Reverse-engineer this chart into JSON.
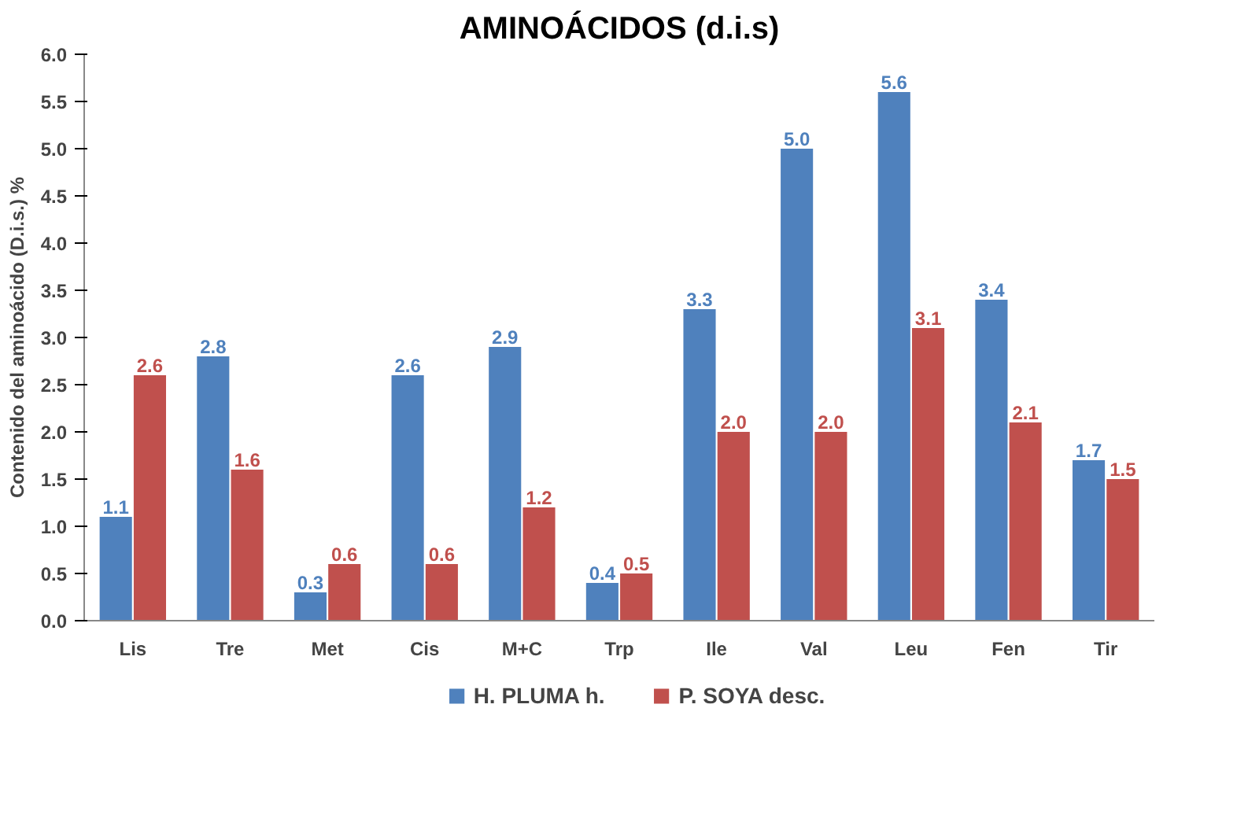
{
  "chart_data": {
    "type": "bar",
    "title": "AMINOÁCIDOS (d.i.s)",
    "ylabel": "Contenido del aminoácido (D.i.s.) %",
    "categories": [
      "Lis",
      "Tre",
      "Met",
      "Cis",
      "M+C",
      "Trp",
      "Ile",
      "Val",
      "Leu",
      "Fen",
      "Tir"
    ],
    "series": [
      {
        "name": "H. PLUMA h.",
        "color": "#4f81bd",
        "values": [
          1.1,
          2.8,
          0.3,
          2.6,
          2.9,
          0.4,
          3.3,
          5.0,
          5.6,
          3.4,
          1.7
        ],
        "value_labels": [
          "1.1",
          "2.8",
          "0.3",
          "2.6",
          "2.9",
          "0.4",
          "3.3",
          "5.0",
          "5.6",
          "3.4",
          "1.7"
        ]
      },
      {
        "name": "P. SOYA desc.",
        "color": "#c0504d",
        "values": [
          2.6,
          1.6,
          0.6,
          0.6,
          1.2,
          0.5,
          2.0,
          2.0,
          3.1,
          2.1,
          1.5
        ],
        "value_labels": [
          "2.6",
          "1.6",
          "0.6",
          "0.6",
          "1.2",
          "0.5",
          "2.0",
          "2.0",
          "3.1",
          "2.1",
          "1.5"
        ]
      }
    ],
    "ylim": [
      0,
      6
    ],
    "yticks": [
      {
        "value": 0,
        "label": "0.0"
      },
      {
        "value": 0.5,
        "label": "0.5"
      },
      {
        "value": 1,
        "label": "1.0"
      },
      {
        "value": 1.5,
        "label": "1.5"
      },
      {
        "value": 2,
        "label": "2.0"
      },
      {
        "value": 2.5,
        "label": "2.5"
      },
      {
        "value": 3,
        "label": "3.0"
      },
      {
        "value": 3.5,
        "label": "3.5"
      },
      {
        "value": 4,
        "label": "4.0"
      },
      {
        "value": 4.5,
        "label": "4.5"
      },
      {
        "value": 5,
        "label": "5.0"
      },
      {
        "value": 5.5,
        "label": "5.5"
      },
      {
        "value": 6,
        "label": "6.0"
      }
    ],
    "legend": "bottom",
    "grid": false
  }
}
